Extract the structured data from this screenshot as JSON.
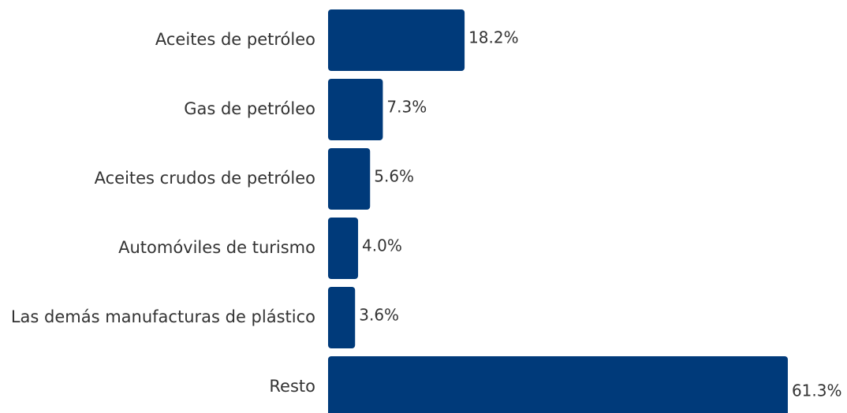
{
  "chart_data": {
    "type": "bar",
    "orientation": "horizontal",
    "categories": [
      "Aceites de petróleo",
      "Gas de petróleo",
      "Aceites crudos de petróleo",
      "Automóviles de turismo",
      "Las demás manufacturas de plástico",
      "Resto"
    ],
    "values": [
      18.2,
      7.3,
      5.6,
      4.0,
      3.6,
      61.3
    ],
    "value_labels": [
      "18.2%",
      "7.3%",
      "5.6%",
      "4.0%",
      "3.6%",
      "61.3%"
    ],
    "color": "#003a7a"
  }
}
